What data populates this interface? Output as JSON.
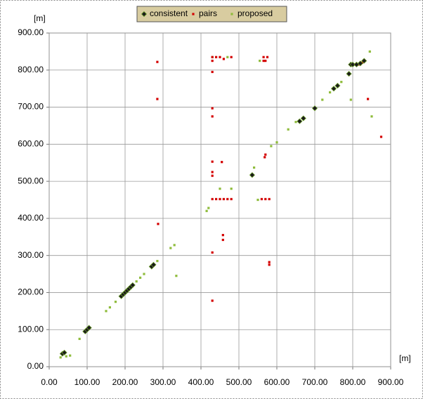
{
  "chart_data": {
    "type": "scatter",
    "x_unit": "[m]",
    "y_unit": "[m]",
    "xlim": [
      0,
      900
    ],
    "ylim": [
      0,
      900
    ],
    "xticks": [
      {
        "value": 0,
        "label": "0.00"
      },
      {
        "value": 100,
        "label": "100.00"
      },
      {
        "value": 200,
        "label": "200.00"
      },
      {
        "value": 300,
        "label": "300.00"
      },
      {
        "value": 400,
        "label": "400.00"
      },
      {
        "value": 500,
        "label": "500.00"
      },
      {
        "value": 600,
        "label": "600.00"
      },
      {
        "value": 700,
        "label": "700.00"
      },
      {
        "value": 800,
        "label": "800.00"
      },
      {
        "value": 900,
        "label": "900.00"
      }
    ],
    "yticks": [
      {
        "value": 0,
        "label": "0.00"
      },
      {
        "value": 100,
        "label": "100.00"
      },
      {
        "value": 200,
        "label": "200.00"
      },
      {
        "value": 300,
        "label": "300.00"
      },
      {
        "value": 400,
        "label": "400.00"
      },
      {
        "value": 500,
        "label": "500.00"
      },
      {
        "value": 600,
        "label": "600.00"
      },
      {
        "value": 700,
        "label": "700.00"
      },
      {
        "value": 800,
        "label": "800.00"
      },
      {
        "value": 900,
        "label": "900.00"
      }
    ],
    "grid": true,
    "legend": "top",
    "series": [
      {
        "name": "consistent",
        "color": "#1a1a1a",
        "x": [
          35,
          40,
          95,
          100,
          105,
          190,
          195,
          200,
          205,
          210,
          215,
          220,
          270,
          275,
          535,
          660,
          670,
          700,
          750,
          760,
          790,
          795,
          800,
          810,
          820,
          830
        ],
        "y": [
          35,
          38,
          95,
          100,
          105,
          190,
          195,
          200,
          205,
          210,
          215,
          220,
          270,
          275,
          517,
          662,
          670,
          697,
          750,
          758,
          790,
          815,
          815,
          815,
          818,
          825
        ]
      },
      {
        "name": "pairs",
        "color": "#d40000",
        "x": [
          285,
          285,
          287,
          430,
          430,
          430,
          430,
          430,
          430,
          430,
          430,
          430,
          440,
          450,
          460,
          470,
          480,
          430,
          430,
          455,
          458,
          458,
          440,
          450,
          460,
          480,
          565,
          575,
          565,
          570,
          560,
          570,
          580,
          570,
          568,
          580,
          580,
          805,
          815,
          825,
          840,
          875
        ],
        "y": [
          822,
          722,
          385,
          835,
          825,
          795,
          697,
          675,
          553,
          525,
          515,
          452,
          452,
          452,
          452,
          452,
          452,
          308,
          178,
          552,
          355,
          342,
          835,
          835,
          830,
          835,
          835,
          835,
          825,
          825,
          452,
          452,
          452,
          572,
          565,
          282,
          275,
          815,
          815,
          820,
          722,
          620
        ]
      },
      {
        "name": "proposed",
        "color": "#8fbc3c",
        "x": [
          30,
          45,
          55,
          80,
          150,
          160,
          175,
          230,
          240,
          250,
          285,
          320,
          330,
          335,
          415,
          420,
          450,
          480,
          430,
          470,
          550,
          555,
          585,
          600,
          630,
          650,
          720,
          740,
          770,
          795,
          850,
          845,
          540
        ],
        "y": [
          25,
          28,
          30,
          75,
          150,
          160,
          175,
          230,
          240,
          250,
          285,
          320,
          328,
          245,
          420,
          428,
          480,
          480,
          835,
          835,
          450,
          825,
          595,
          605,
          640,
          660,
          720,
          740,
          768,
          720,
          675,
          850,
          537
        ]
      }
    ]
  }
}
